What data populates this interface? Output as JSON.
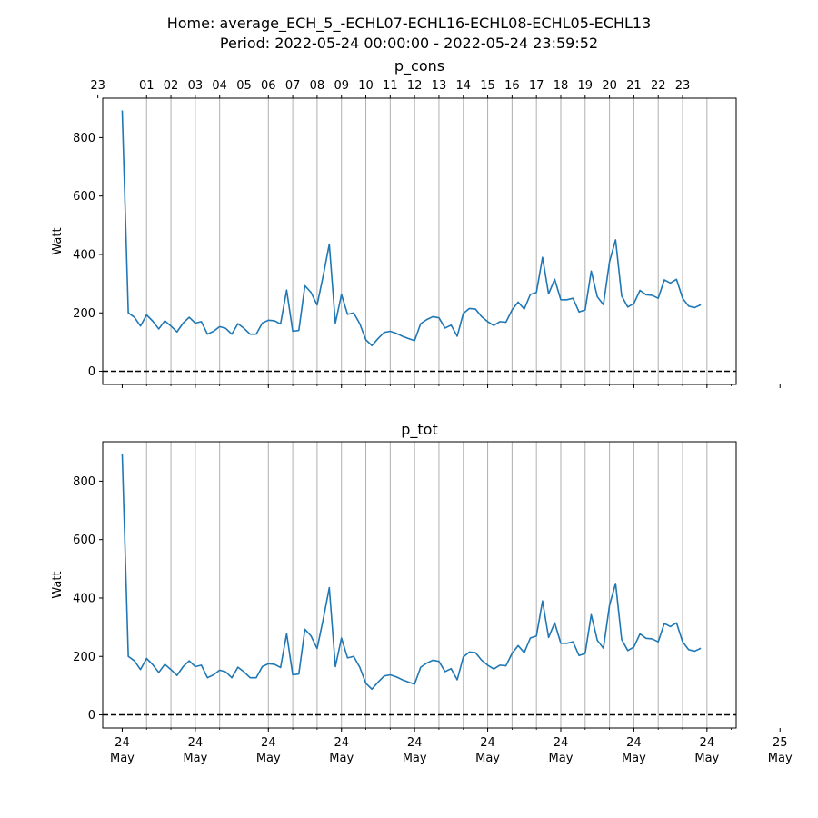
{
  "header": {
    "title_line1": "Home: average_ECH_5_-ECHL07-ECHL16-ECHL08-ECHL05-ECHL13",
    "title_line2": "Period: 2022-05-24 00:00:00 - 2022-05-24 23:59:52"
  },
  "colors": {
    "line": "#1f77b4",
    "zero_line": "#000000",
    "grid": "#b0b0b0"
  },
  "chart_data": [
    {
      "type": "line",
      "title": "p_cons",
      "ylabel": "Watt",
      "ylim": [
        -45,
        935
      ],
      "y_ticks": [
        0,
        200,
        400,
        600,
        800
      ],
      "x_range_hours": [
        -0.8,
        25.2
      ],
      "top_axis_hour_ticks": [
        "23",
        "01",
        "02",
        "03",
        "04",
        "05",
        "06",
        "07",
        "08",
        "09",
        "10",
        "11",
        "12",
        "13",
        "14",
        "15",
        "16",
        "17",
        "18",
        "19",
        "20",
        "21",
        "22",
        "23"
      ],
      "bottom_date_ticks": [
        {
          "day": "24",
          "month": "May"
        },
        {
          "day": "24",
          "month": "May"
        },
        {
          "day": "24",
          "month": "May"
        },
        {
          "day": "24",
          "month": "May"
        },
        {
          "day": "24",
          "month": "May"
        },
        {
          "day": "24",
          "month": "May"
        },
        {
          "day": "24",
          "month": "May"
        },
        {
          "day": "24",
          "month": "May"
        },
        {
          "day": "24",
          "month": "May"
        },
        {
          "day": "25",
          "month": "May"
        }
      ],
      "reference_line": {
        "y": 0,
        "style": "dashed"
      },
      "grid": "vertical hourly",
      "series": [
        {
          "interval_minutes": 15,
          "values": [
            893,
            200,
            185,
            155,
            193,
            172,
            145,
            173,
            155,
            135,
            165,
            185,
            165,
            170,
            127,
            137,
            153,
            147,
            127,
            163,
            147,
            127,
            127,
            165,
            175,
            173,
            162,
            278,
            137,
            140,
            293,
            270,
            227,
            327,
            435,
            165,
            263,
            195,
            200,
            163,
            108,
            88,
            112,
            133,
            137,
            130,
            120,
            112,
            105,
            163,
            177,
            187,
            183,
            148,
            158,
            120,
            198,
            215,
            213,
            187,
            170,
            157,
            170,
            168,
            210,
            237,
            213,
            263,
            270,
            390,
            265,
            315,
            245,
            245,
            250,
            203,
            210,
            343,
            255,
            228,
            375,
            450,
            258,
            220,
            232,
            277,
            262,
            260,
            250,
            313,
            302,
            315,
            250,
            223,
            218,
            228
          ]
        }
      ]
    },
    {
      "type": "line",
      "title": "p_tot",
      "ylabel": "Watt",
      "ylim": [
        -45,
        935
      ],
      "y_ticks": [
        0,
        200,
        400,
        600,
        800
      ],
      "x_range_hours": [
        -0.8,
        25.2
      ],
      "reference_line": {
        "y": 0,
        "style": "dashed"
      },
      "grid": "vertical hourly",
      "series": [
        {
          "interval_minutes": 15,
          "values": [
            893,
            200,
            185,
            155,
            193,
            172,
            145,
            173,
            155,
            135,
            165,
            185,
            165,
            170,
            127,
            137,
            153,
            147,
            127,
            163,
            147,
            127,
            127,
            165,
            175,
            173,
            162,
            278,
            137,
            140,
            293,
            270,
            227,
            327,
            435,
            165,
            263,
            195,
            200,
            163,
            108,
            88,
            112,
            133,
            137,
            130,
            120,
            112,
            105,
            163,
            177,
            187,
            183,
            148,
            158,
            120,
            198,
            215,
            213,
            187,
            170,
            157,
            170,
            168,
            210,
            237,
            213,
            263,
            270,
            390,
            265,
            315,
            245,
            245,
            250,
            203,
            210,
            343,
            255,
            228,
            375,
            450,
            258,
            220,
            232,
            277,
            262,
            260,
            250,
            313,
            302,
            315,
            250,
            223,
            218,
            228
          ]
        }
      ]
    }
  ]
}
